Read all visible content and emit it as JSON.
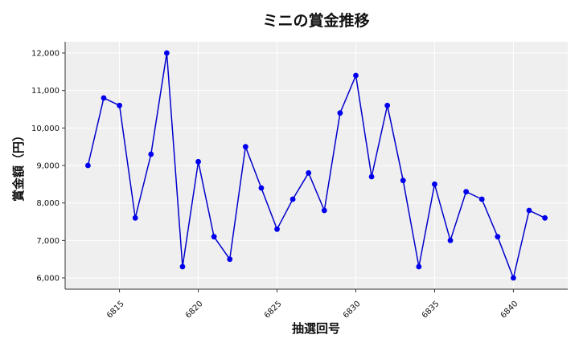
{
  "chart_data": {
    "type": "line",
    "title": "ミニの賞金推移",
    "xlabel": "抽選回号",
    "ylabel": "賞金額（円）",
    "x": [
      6813,
      6814,
      6815,
      6816,
      6817,
      6818,
      6819,
      6820,
      6821,
      6822,
      6823,
      6824,
      6825,
      6826,
      6827,
      6828,
      6829,
      6830,
      6831,
      6832,
      6833,
      6834,
      6835,
      6836,
      6837,
      6838,
      6839,
      6840,
      6841,
      6842
    ],
    "series": [
      {
        "values": [
          9000,
          10800,
          10600,
          7600,
          9300,
          12000,
          6300,
          9100,
          7100,
          6500,
          9500,
          8400,
          7300,
          8100,
          8800,
          7800,
          10400,
          11400,
          8700,
          10600,
          8600,
          6300,
          8500,
          7000,
          8300,
          8100,
          7100,
          6000,
          7800,
          7600
        ]
      }
    ],
    "xticks": [
      "6815",
      "6820",
      "6825",
      "6830",
      "6835",
      "6840"
    ],
    "yticks": [
      "6,000",
      "7,000",
      "8,000",
      "9,000",
      "10,000",
      "11,000",
      "12,000"
    ],
    "xlim": [
      6811.55,
      6843.45
    ],
    "ylim": [
      5700,
      12300
    ],
    "grid": true,
    "colors": {
      "line": "#0000cc",
      "marker": "#0000ee",
      "plot_bg": "#efefef",
      "grid": "#ffffff"
    }
  }
}
